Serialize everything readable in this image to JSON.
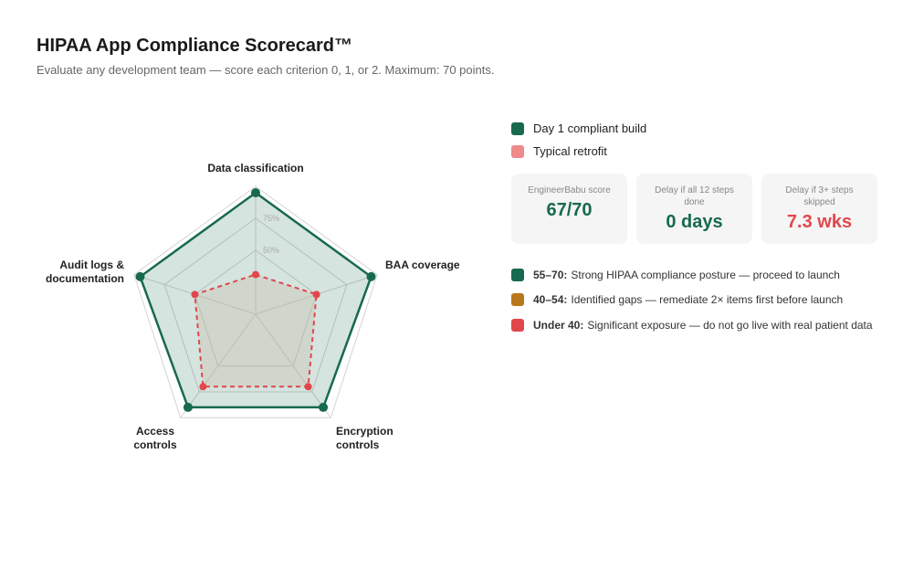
{
  "chart_data": {
    "type": "radar",
    "title": "HIPAA App Compliance Scorecard™",
    "subtitle": "Evaluate any development team — score each criterion 0, 1, or 2. Maximum: 70 points.",
    "categories": [
      "Data classification",
      "BAA coverage",
      "Encryption controls",
      "Access controls",
      "Audit logs & documentation"
    ],
    "series": [
      {
        "name": "Day 1 compliant build",
        "color": "#17694f",
        "values": [
          95,
          95,
          90,
          90,
          95
        ]
      },
      {
        "name": "Typical retrofit",
        "color": "#e0474c",
        "legend_color": "#ef8a8a",
        "values": [
          31,
          50,
          70,
          70,
          50
        ]
      }
    ],
    "ylim": [
      0,
      100
    ],
    "yticks": [
      {
        "value": 50,
        "label": "50%"
      },
      {
        "value": 75,
        "label": "75%"
      }
    ],
    "grid": true
  },
  "cards": [
    {
      "label": "EngineerBabu score",
      "value": "67/70",
      "color": "#17694f"
    },
    {
      "label": "Delay if all 12 steps done",
      "value": "0 days",
      "color": "#17694f"
    },
    {
      "label": "Delay if 3+ steps skipped",
      "value": "7.3 wks",
      "color": "#e0474c"
    }
  ],
  "thresholds": [
    {
      "range": "55–70:",
      "text": "Strong HIPAA compliance posture — proceed to launch",
      "color": "#17694f"
    },
    {
      "range": "40–54:",
      "text": "Identified gaps — remediate 2× items first before launch",
      "color": "#b8781a"
    },
    {
      "range": "Under 40:",
      "text": "Significant exposure — do not go live with real patient data",
      "color": "#e0474c"
    }
  ]
}
